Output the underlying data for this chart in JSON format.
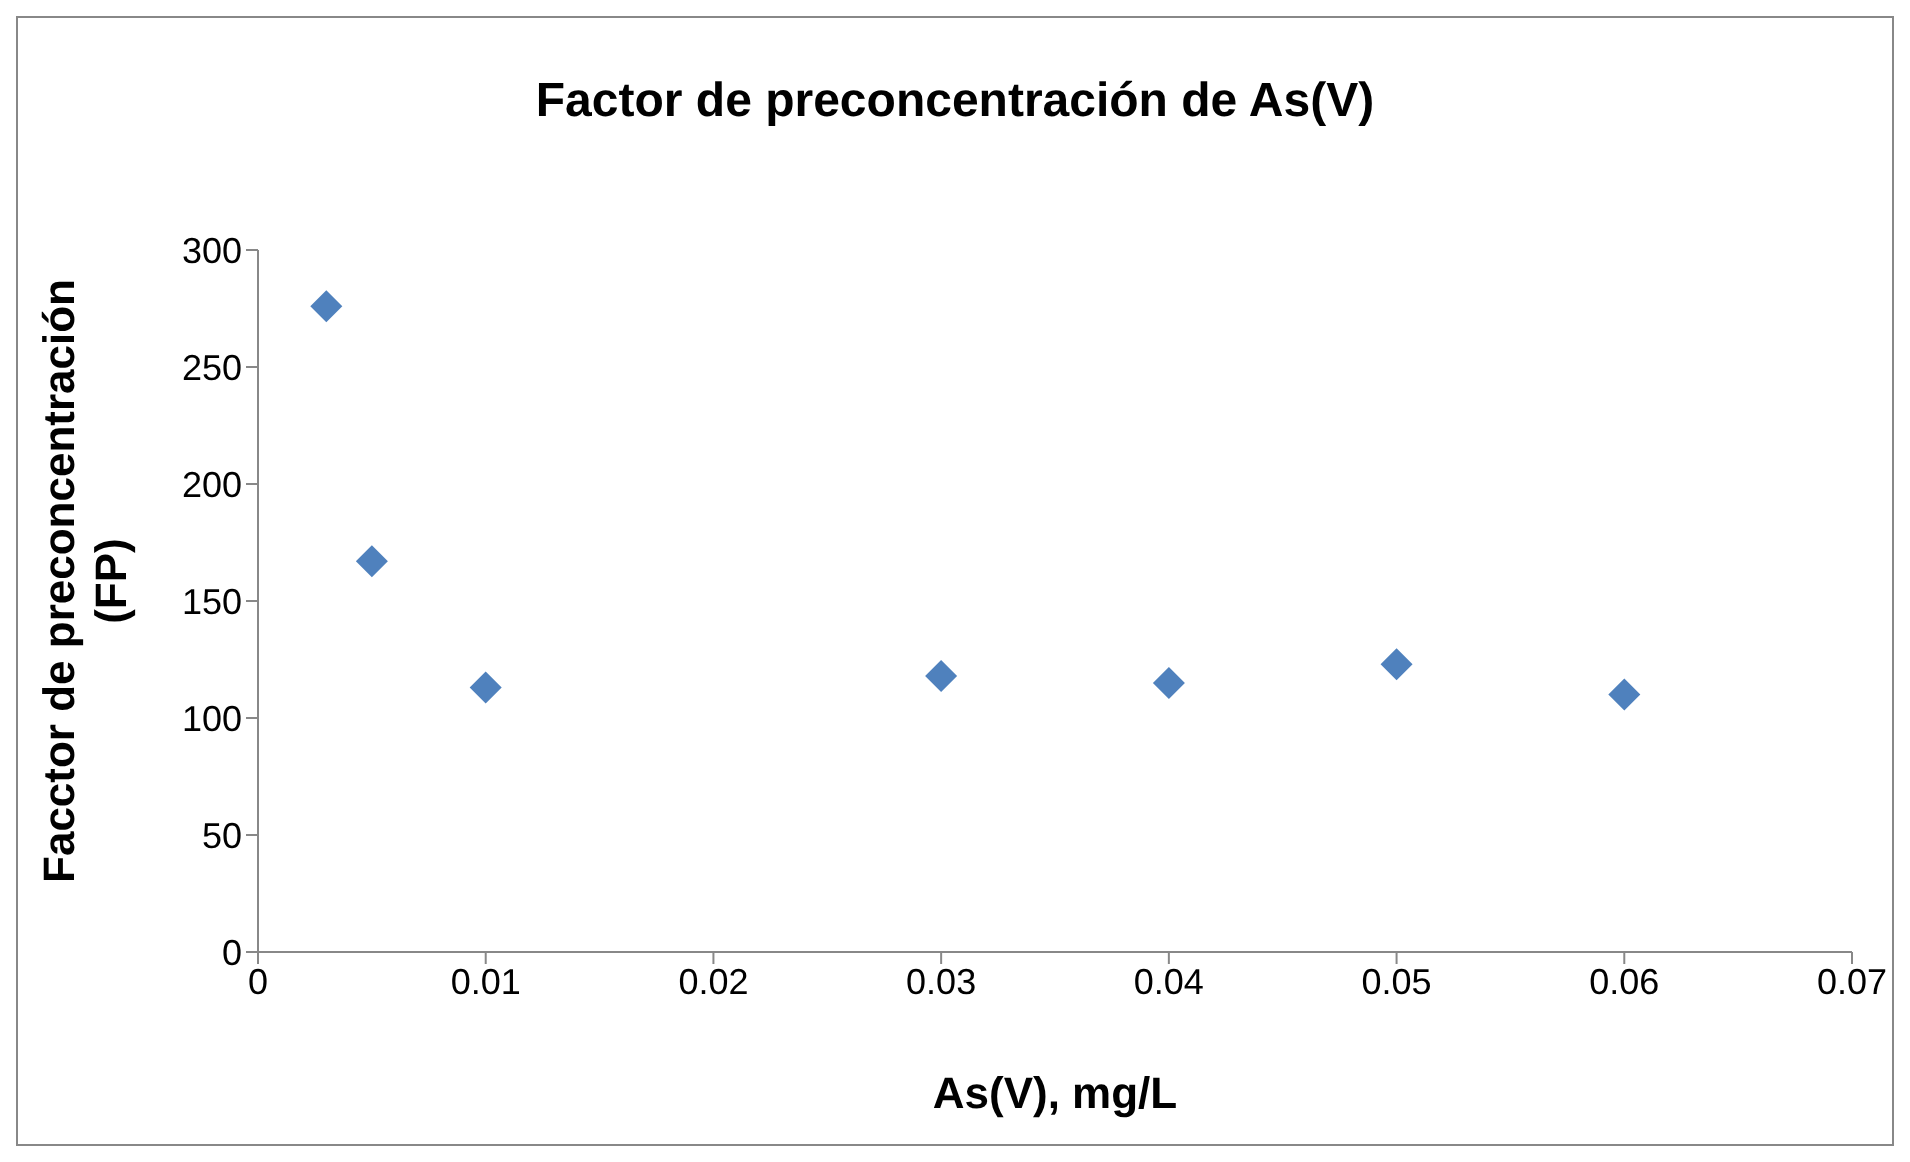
{
  "chart_data": {
    "type": "scatter",
    "title": "Factor de preconcentración de As(V)",
    "xlabel": "As(V), mg/L",
    "ylabel": "Facctor de preconcentración (FP)",
    "x": [
      0.003,
      0.005,
      0.01,
      0.03,
      0.04,
      0.05,
      0.06
    ],
    "series": [
      {
        "color": "#4f81bd",
        "values": [
          276,
          167,
          113,
          118,
          115,
          123,
          110
        ]
      }
    ],
    "xlim": [
      0,
      0.07
    ],
    "xticks": [
      0,
      0.01,
      0.02,
      0.03,
      0.04,
      0.05,
      0.06,
      0.07
    ],
    "ylim": [
      0,
      300
    ],
    "yticks": [
      0,
      50,
      100,
      150,
      200,
      250,
      300
    ],
    "grid": false,
    "legend": false,
    "marker": "diamond"
  }
}
